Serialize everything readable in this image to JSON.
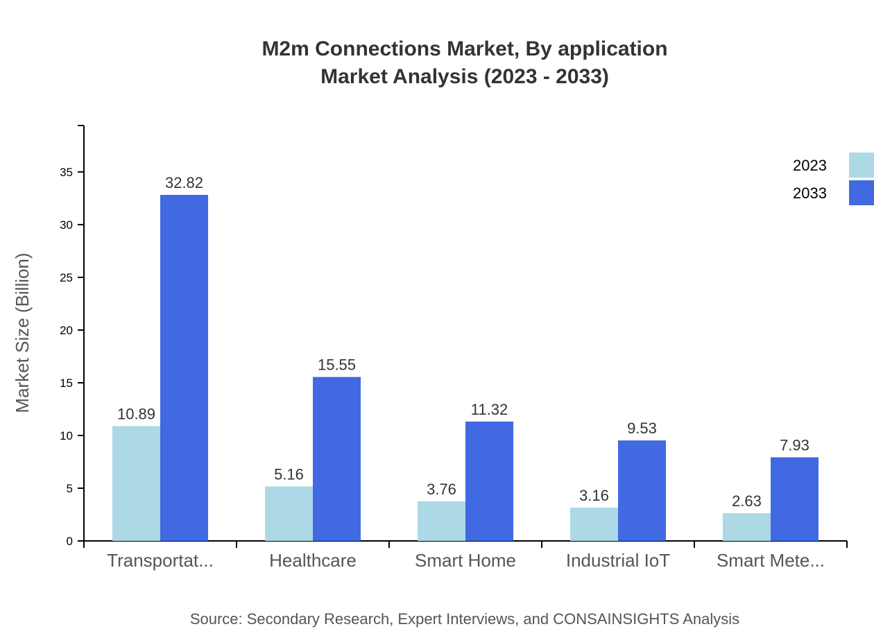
{
  "chart_data": {
    "type": "bar",
    "title": "M2m Connections Market, By application",
    "subtitle": "Market Analysis (2023 - 2033)",
    "xlabel": "",
    "ylabel": "Market Size (Billion)",
    "ylim": [
      0,
      39.4
    ],
    "yticks": [
      0,
      5,
      10,
      15,
      20,
      25,
      30,
      35
    ],
    "grid": false,
    "legend_placement": "top-right",
    "categories": [
      "Transportat...",
      "Healthcare",
      "Smart Home",
      "Industrial IoT",
      "Smart Mete..."
    ],
    "series": [
      {
        "name": "2023",
        "color": "#add8e6",
        "values": [
          10.89,
          5.16,
          3.76,
          3.16,
          2.63
        ]
      },
      {
        "name": "2033",
        "color": "#4169e1",
        "values": [
          32.82,
          15.55,
          11.32,
          9.53,
          7.93
        ]
      }
    ],
    "source": "Source: Secondary Research, Expert Interviews, and CONSAINSIGHTS Analysis"
  }
}
